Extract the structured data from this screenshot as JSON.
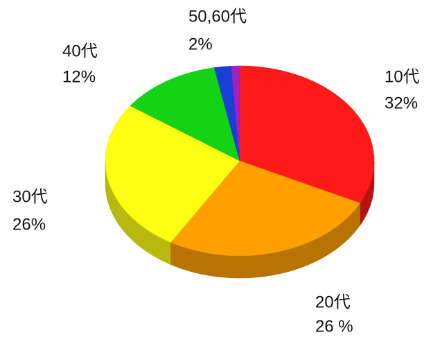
{
  "chart_data": {
    "type": "pie",
    "categories": [
      "10代",
      "20代",
      "30代",
      "40代",
      "50,60代",
      null
    ],
    "values": [
      32,
      26,
      26,
      12,
      2,
      1
    ],
    "value_labels": [
      "32%",
      "26 %",
      "26%",
      "12%",
      "2%",
      null
    ],
    "colors": [
      "#ff1a1a",
      "#ffa000",
      "#ffff14",
      "#14d214",
      "#1a3fd6",
      "#a020c0"
    ],
    "three_d": true
  }
}
